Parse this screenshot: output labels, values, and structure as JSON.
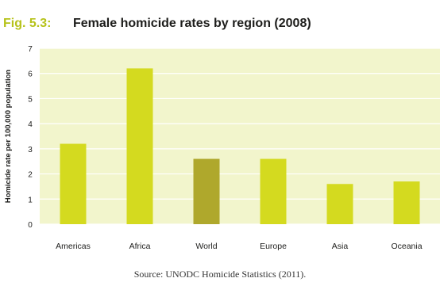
{
  "figure": {
    "label": "Fig. 5.3:",
    "title": "Female homicide rates by region (2008)",
    "source": "Source: UNODC Homicide Statistics (2011)."
  },
  "colors": {
    "panel": "#f2f5cc",
    "bar": "#d4da1f",
    "bar_highlight": "#afa82c",
    "label": "#b6c21a",
    "text": "#1d1d1b"
  },
  "chart_data": {
    "type": "bar",
    "ylabel": "Homicide rate per 100,000 population",
    "xlabel": "",
    "ylim": [
      0,
      7
    ],
    "yticks": [
      0,
      1,
      2,
      3,
      4,
      5,
      6,
      7
    ],
    "grid": true,
    "categories": [
      "Americas",
      "Africa",
      "World",
      "Europe",
      "Asia",
      "Oceania"
    ],
    "values": [
      3.2,
      6.2,
      2.6,
      2.6,
      1.6,
      1.7
    ],
    "highlight": "World"
  }
}
